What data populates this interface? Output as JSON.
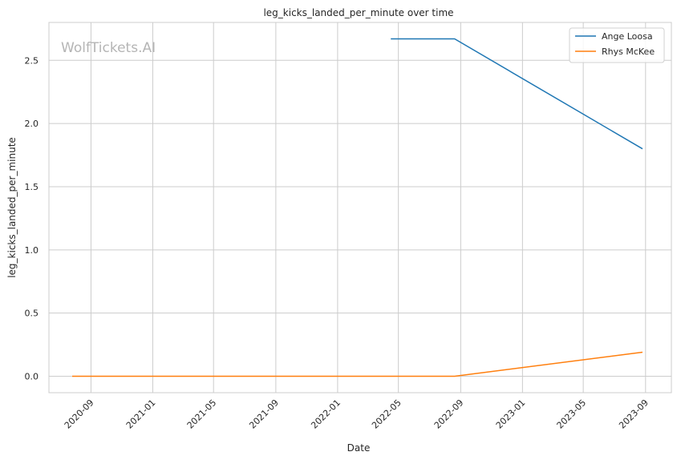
{
  "chart_data": {
    "type": "line",
    "title": "leg_kicks_landed_per_minute over time",
    "xlabel": "Date",
    "ylabel": "leg_kicks_landed_per_minute",
    "watermark": "WolfTickets.AI",
    "grid": true,
    "legend_position": "top-right",
    "xlim": [
      "2020-06-10",
      "2023-10-22"
    ],
    "ylim": [
      -0.13,
      2.8
    ],
    "x_ticks": [
      "2020-09",
      "2021-01",
      "2021-05",
      "2021-09",
      "2022-01",
      "2022-05",
      "2022-09",
      "2023-01",
      "2023-05",
      "2023-09"
    ],
    "x_tick_dates": [
      "2020-09-01",
      "2021-01-01",
      "2021-05-01",
      "2021-09-01",
      "2022-01-01",
      "2022-05-01",
      "2022-09-01",
      "2023-01-01",
      "2023-05-01",
      "2023-09-01"
    ],
    "y_ticks": [
      "0.0",
      "0.5",
      "1.0",
      "1.5",
      "2.0",
      "2.5"
    ],
    "y_tick_values": [
      0,
      0.5,
      1.0,
      1.5,
      2.0,
      2.5
    ],
    "series": [
      {
        "name": "Ange Loosa",
        "color": "#1f77b4",
        "points": [
          {
            "x": "2022-04-16",
            "y": 2.67
          },
          {
            "x": "2022-08-20",
            "y": 2.67
          },
          {
            "x": "2023-08-26",
            "y": 1.8
          }
        ]
      },
      {
        "name": "Rhys McKee",
        "color": "#ff7f0e",
        "points": [
          {
            "x": "2020-07-26",
            "y": 0.0
          },
          {
            "x": "2022-08-20",
            "y": 0.0
          },
          {
            "x": "2023-08-26",
            "y": 0.19
          }
        ]
      }
    ]
  }
}
